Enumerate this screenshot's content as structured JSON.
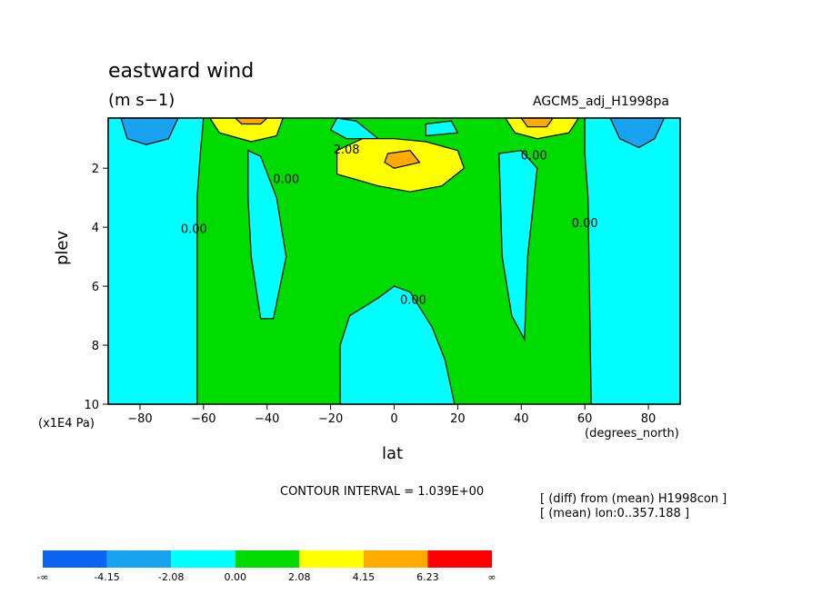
{
  "header": {
    "title": "eastward wind",
    "units": "(m s−1)",
    "dataset": "AGCM5_adj_H1998pa"
  },
  "footer": {
    "contour_interval": "CONTOUR INTERVAL = 1.039E+00",
    "notes": [
      "[ (diff) from (mean) H1998con ]",
      "[ (mean) lon:0..357.188 ]"
    ]
  },
  "chart_data": {
    "type": "contour",
    "title": "eastward wind",
    "subtitle": "(m s-1)",
    "xlabel": "lat",
    "xunits": "(degrees_north)",
    "ylabel": "plev",
    "yunits": "(x1E4 Pa)",
    "xlim": [
      -90,
      90
    ],
    "ylim": [
      10,
      0.3
    ],
    "x_ticks": [
      -80,
      -60,
      -40,
      -20,
      0,
      20,
      40,
      60,
      80
    ],
    "y_ticks": [
      2,
      4,
      6,
      8,
      10
    ],
    "contour_interval": 1.039,
    "levels": [
      "-∞",
      "-4.15",
      "-2.08",
      "0.00",
      "2.08",
      "4.15",
      "6.23",
      "∞"
    ],
    "level_colors": [
      "#0a64f0",
      "#18a2f0",
      "#00ffff",
      "#00dc00",
      "#ffff00",
      "#ffaa00",
      "#ff0000"
    ],
    "contour_labels": [
      {
        "text": "2.08",
        "lat": -15,
        "plev": 1.5
      },
      {
        "text": "0.00",
        "lat": 44,
        "plev": 1.7
      },
      {
        "text": "0.00",
        "lat": -34,
        "plev": 2.5
      },
      {
        "text": "0.00",
        "lat": -63,
        "plev": 4.2
      },
      {
        "text": "0.00",
        "lat": 60,
        "plev": 4.0
      },
      {
        "text": "0.00",
        "lat": 6,
        "plev": 6.6
      }
    ],
    "regions": [
      {
        "level": "-2.08",
        "points": [
          [
            -90,
            0.3
          ],
          [
            -60,
            0.3
          ],
          [
            -61,
            1.5
          ],
          [
            -62,
            3
          ],
          [
            -62,
            10
          ],
          [
            -90,
            10
          ]
        ]
      },
      {
        "level": "-2.08",
        "points": [
          [
            60,
            0.3
          ],
          [
            90,
            0.3
          ],
          [
            90,
            10
          ],
          [
            62,
            10
          ],
          [
            61,
            3
          ],
          [
            60,
            1.5
          ]
        ]
      },
      {
        "level": "-4.15",
        "points": [
          [
            -86,
            0.3
          ],
          [
            -68,
            0.3
          ],
          [
            -71,
            1
          ],
          [
            -78,
            1.2
          ],
          [
            -84,
            1
          ]
        ]
      },
      {
        "level": "-4.15",
        "points": [
          [
            68,
            0.3
          ],
          [
            85,
            0.3
          ],
          [
            82,
            1
          ],
          [
            77,
            1.3
          ],
          [
            71,
            1
          ]
        ]
      },
      {
        "level": "-2.08",
        "points": [
          [
            -46,
            1.4
          ],
          [
            -42,
            1.6
          ],
          [
            -37,
            3
          ],
          [
            -34,
            5
          ],
          [
            -38,
            7.1
          ],
          [
            -42,
            7.1
          ],
          [
            -45,
            5
          ],
          [
            -46,
            3
          ]
        ]
      },
      {
        "level": "-2.08",
        "points": [
          [
            33,
            1.5
          ],
          [
            40,
            1.4
          ],
          [
            45,
            2
          ],
          [
            42,
            5
          ],
          [
            41,
            7.8
          ],
          [
            37,
            7
          ],
          [
            34,
            5
          ]
        ]
      },
      {
        "level": "-2.08",
        "points": [
          [
            -17,
            10
          ],
          [
            -17,
            8
          ],
          [
            -14,
            7
          ],
          [
            -5,
            6.4
          ],
          [
            0,
            6
          ],
          [
            5,
            6.2
          ],
          [
            12,
            7.4
          ],
          [
            16,
            8.5
          ],
          [
            19,
            10
          ]
        ]
      },
      {
        "level": "-2.08",
        "points": [
          [
            -18,
            0.3
          ],
          [
            -12,
            0.4
          ],
          [
            -5,
            1
          ],
          [
            -15,
            1
          ],
          [
            -20,
            0.7
          ]
        ]
      },
      {
        "level": "-2.08",
        "points": [
          [
            10,
            0.5
          ],
          [
            18,
            0.4
          ],
          [
            20,
            0.8
          ],
          [
            10,
            0.9
          ]
        ]
      },
      {
        "level": "2.08",
        "points": [
          [
            -18,
            1.4
          ],
          [
            -10,
            1
          ],
          [
            0,
            1
          ],
          [
            10,
            1.1
          ],
          [
            20,
            1.4
          ],
          [
            22,
            2
          ],
          [
            15,
            2.6
          ],
          [
            5,
            2.8
          ],
          [
            -5,
            2.6
          ],
          [
            -18,
            2.2
          ]
        ]
      },
      {
        "level": "2.08",
        "points": [
          [
            -58,
            0.3
          ],
          [
            -35,
            0.3
          ],
          [
            -37,
            0.9
          ],
          [
            -45,
            1.1
          ],
          [
            -55,
            0.8
          ]
        ]
      },
      {
        "level": "2.08",
        "points": [
          [
            35,
            0.3
          ],
          [
            58,
            0.3
          ],
          [
            55,
            0.8
          ],
          [
            45,
            1
          ],
          [
            38,
            0.8
          ]
        ]
      },
      {
        "level": "4.15",
        "points": [
          [
            -50,
            0.3
          ],
          [
            -40,
            0.3
          ],
          [
            -42,
            0.5
          ],
          [
            -48,
            0.5
          ]
        ]
      },
      {
        "level": "4.15",
        "points": [
          [
            40,
            0.3
          ],
          [
            50,
            0.3
          ],
          [
            48,
            0.6
          ],
          [
            42,
            0.6
          ]
        ]
      },
      {
        "level": "4.15",
        "points": [
          [
            -2,
            1.5
          ],
          [
            5,
            1.4
          ],
          [
            8,
            1.8
          ],
          [
            0,
            2
          ],
          [
            -3,
            1.8
          ]
        ]
      }
    ]
  }
}
